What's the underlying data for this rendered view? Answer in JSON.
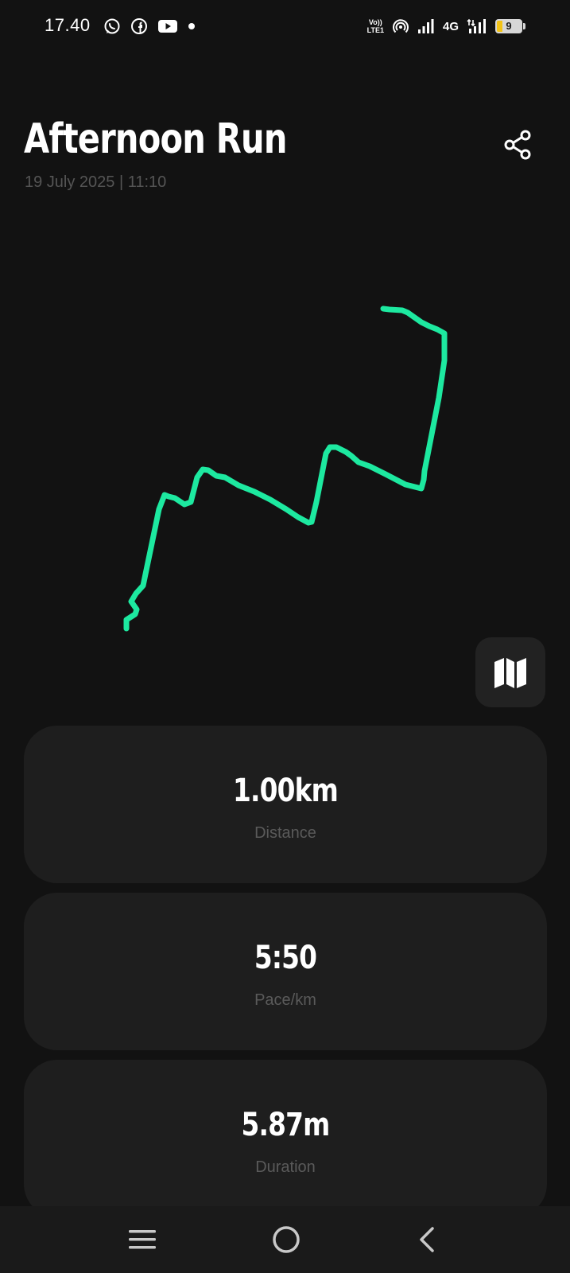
{
  "status_bar": {
    "time": "17.40",
    "left_icons": [
      "whatsapp-icon",
      "facebook-icon",
      "youtube-icon",
      "dot-icon"
    ],
    "volte_top": "Vo))",
    "volte_bottom": "LTE1",
    "network": "4G",
    "battery_level": "9"
  },
  "activity": {
    "title": "Afternoon Run",
    "date_time": "19 July 2025 | 11:10",
    "route_color": "#1de9a0"
  },
  "actions": {
    "share_icon": "share-icon",
    "map_icon": "map-icon"
  },
  "stats": [
    {
      "value": "1.00km",
      "label": "Distance"
    },
    {
      "value": "5:50",
      "label": "Pace/km"
    },
    {
      "value": "5.87m",
      "label": "Duration"
    }
  ],
  "nav": {
    "icons": [
      "menu-icon",
      "home-icon",
      "back-icon"
    ]
  }
}
